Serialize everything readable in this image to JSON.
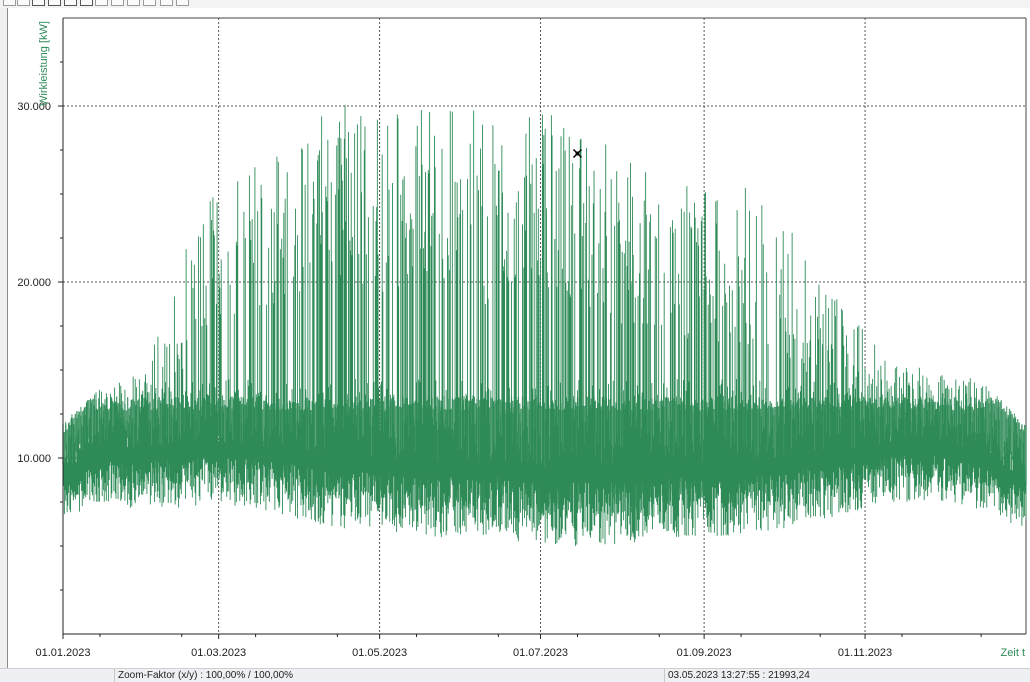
{
  "chart_data": {
    "type": "line",
    "ylabel": "Wirkleistung [kW]",
    "xlabel": "Zeit t",
    "x_range": [
      "2023-01-01",
      "2023-12-31"
    ],
    "ylim": [
      0,
      35000
    ],
    "y_ticks": [
      {
        "value": 10000,
        "label": "10.000"
      },
      {
        "value": 20000,
        "label": "20.000"
      },
      {
        "value": 30000,
        "label": "30.000"
      }
    ],
    "y_minor_ticks": [
      2500,
      5000,
      7500,
      12500,
      15000,
      17500,
      22500,
      25000,
      27500,
      32500
    ],
    "x_ticks": [
      {
        "date": "2023-01-01",
        "label": "01.01.2023"
      },
      {
        "date": "2023-03-01",
        "label": "01.03.2023"
      },
      {
        "date": "2023-05-01",
        "label": "01.05.2023"
      },
      {
        "date": "2023-07-01",
        "label": "01.07.2023"
      },
      {
        "date": "2023-09-01",
        "label": "01.09.2023"
      },
      {
        "date": "2023-11-01",
        "label": "01.11.2023"
      }
    ],
    "grid": true,
    "series": [
      {
        "color": "#2e8b57",
        "envelope": [
          {
            "date": "2023-01-01",
            "min": 6500,
            "max": 12000
          },
          {
            "date": "2023-01-15",
            "min": 7500,
            "max": 14000
          },
          {
            "date": "2023-02-01",
            "min": 7000,
            "max": 15000
          },
          {
            "date": "2023-02-15",
            "min": 7000,
            "max": 21500
          },
          {
            "date": "2023-03-01",
            "min": 7500,
            "max": 26500
          },
          {
            "date": "2023-03-15",
            "min": 7000,
            "max": 27000
          },
          {
            "date": "2023-04-01",
            "min": 6500,
            "max": 28500
          },
          {
            "date": "2023-04-15",
            "min": 6000,
            "max": 31000
          },
          {
            "date": "2023-05-01",
            "min": 6000,
            "max": 30500
          },
          {
            "date": "2023-05-15",
            "min": 5500,
            "max": 30000
          },
          {
            "date": "2023-06-01",
            "min": 5500,
            "max": 31500
          },
          {
            "date": "2023-06-15",
            "min": 5500,
            "max": 28500
          },
          {
            "date": "2023-07-01",
            "min": 5000,
            "max": 30500
          },
          {
            "date": "2023-07-15",
            "min": 5000,
            "max": 28500
          },
          {
            "date": "2023-08-01",
            "min": 5000,
            "max": 27500
          },
          {
            "date": "2023-08-15",
            "min": 5500,
            "max": 26500
          },
          {
            "date": "2023-09-01",
            "min": 5500,
            "max": 25500
          },
          {
            "date": "2023-09-15",
            "min": 5500,
            "max": 25500
          },
          {
            "date": "2023-10-01",
            "min": 6000,
            "max": 24000
          },
          {
            "date": "2023-10-15",
            "min": 6500,
            "max": 20000
          },
          {
            "date": "2023-11-01",
            "min": 7000,
            "max": 17500
          },
          {
            "date": "2023-11-15",
            "min": 7500,
            "max": 15500
          },
          {
            "date": "2023-12-01",
            "min": 7500,
            "max": 15000
          },
          {
            "date": "2023-12-15",
            "min": 7000,
            "max": 14500
          },
          {
            "date": "2023-12-31",
            "min": 6000,
            "max": 12000
          }
        ]
      }
    ],
    "cursor_marker": {
      "date": "2023-07-15",
      "value": 27300
    }
  },
  "statusbar": {
    "zoom_text": "Zoom-Faktor (x/y) :  100,00% / 100,00%",
    "cursor_text": "03.05.2023 13:27:55 : 21993,24"
  },
  "colors": {
    "series": "#2e8b57",
    "grid": "#555555",
    "axis_label": "#2e8b57"
  }
}
